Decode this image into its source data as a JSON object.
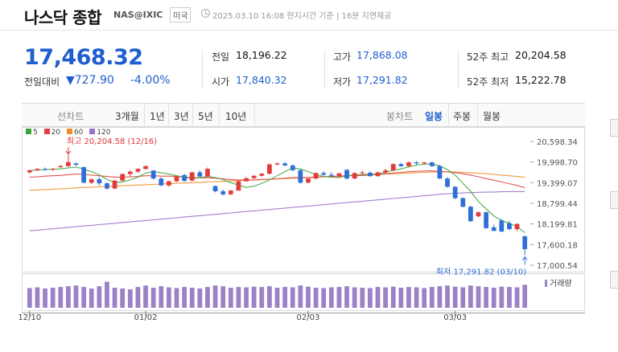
{
  "header": {
    "title": "나스닥 종합",
    "code": "NAS@IXIC",
    "market": "미국",
    "timestamp": "2025.03.10 16:08 현지시간 기준 | 16분 지연제공"
  },
  "quote": {
    "price": "17,468.32",
    "change_label": "전일대비",
    "change_value": "▼727.90",
    "change_pct": "-4.00%"
  },
  "stats": [
    {
      "label": "전일",
      "value": "18,196.22",
      "color": "black"
    },
    {
      "label": "시가",
      "value": "17,840.32",
      "color": "blue"
    },
    {
      "label": "고가",
      "value": "17,868.08",
      "color": "blue"
    },
    {
      "label": "저가",
      "value": "17,291.82",
      "color": "blue"
    },
    {
      "label": "52주 최고",
      "value": "20,204.58",
      "color": "black"
    },
    {
      "label": "52주 최저",
      "value": "15,222.78",
      "color": "black"
    }
  ],
  "tabs": {
    "line": [
      "선차트",
      "3개월",
      "1년",
      "3년",
      "5년",
      "10년"
    ],
    "candle": [
      "봉차트",
      "일봉",
      "주봉",
      "월봉"
    ],
    "active_candle": "일봉"
  },
  "legend": [
    {
      "label": "5",
      "color": "#3aa33a"
    },
    {
      "label": "20",
      "color": "#e04040"
    },
    {
      "label": "60",
      "color": "#f08c28"
    },
    {
      "label": "120",
      "color": "#9a6fc7"
    }
  ],
  "colors": {
    "up": "#e23b3b",
    "down": "#2f6fd8",
    "volume": "#9b82c6",
    "accent": "#1e5ecf"
  },
  "chart_data": {
    "type": "candlestick",
    "y_ticks": [
      "20,598.34",
      "19,998.70",
      "19,399.07",
      "18,799.44",
      "18,199.81",
      "17,600.18",
      "17,000.54"
    ],
    "ylim": [
      17000.54,
      20598.34
    ],
    "x_ticks": [
      {
        "label": "12/10",
        "index": 0
      },
      {
        "label": "01/02",
        "index": 15
      },
      {
        "label": "02/03",
        "index": 36
      },
      {
        "label": "03/03",
        "index": 55
      }
    ],
    "high_annotation": "최고 20,204.58 (12/16)",
    "low_annotation": "최저 17,291.82 (03/10)",
    "volume_label": "거래량",
    "candles": [
      {
        "o": 19700,
        "h": 19780,
        "l": 19660,
        "c": 19760
      },
      {
        "o": 19760,
        "h": 19830,
        "l": 19740,
        "c": 19800
      },
      {
        "o": 19800,
        "h": 19840,
        "l": 19750,
        "c": 19770
      },
      {
        "o": 19780,
        "h": 19830,
        "l": 19740,
        "c": 19800
      },
      {
        "o": 19850,
        "h": 19920,
        "l": 19830,
        "c": 19880
      },
      {
        "o": 19880,
        "h": 20205,
        "l": 19860,
        "c": 20000
      },
      {
        "o": 19960,
        "h": 19980,
        "l": 19880,
        "c": 19920
      },
      {
        "o": 19850,
        "h": 19870,
        "l": 19380,
        "c": 19400
      },
      {
        "o": 19400,
        "h": 19520,
        "l": 19360,
        "c": 19500
      },
      {
        "o": 19500,
        "h": 19560,
        "l": 19320,
        "c": 19380
      },
      {
        "o": 19380,
        "h": 19420,
        "l": 19200,
        "c": 19230
      },
      {
        "o": 19230,
        "h": 19480,
        "l": 19210,
        "c": 19460
      },
      {
        "o": 19460,
        "h": 19670,
        "l": 19440,
        "c": 19650
      },
      {
        "o": 19650,
        "h": 19760,
        "l": 19560,
        "c": 19720
      },
      {
        "o": 19720,
        "h": 19820,
        "l": 19680,
        "c": 19800
      },
      {
        "o": 19800,
        "h": 19900,
        "l": 19780,
        "c": 19880
      },
      {
        "o": 19750,
        "h": 19770,
        "l": 19490,
        "c": 19520
      },
      {
        "o": 19520,
        "h": 19560,
        "l": 19300,
        "c": 19320
      },
      {
        "o": 19320,
        "h": 19460,
        "l": 19280,
        "c": 19440
      },
      {
        "o": 19440,
        "h": 19600,
        "l": 19420,
        "c": 19580
      },
      {
        "o": 19620,
        "h": 19660,
        "l": 19430,
        "c": 19450
      },
      {
        "o": 19460,
        "h": 19720,
        "l": 19440,
        "c": 19700
      },
      {
        "o": 19700,
        "h": 19760,
        "l": 19560,
        "c": 19580
      },
      {
        "o": 19580,
        "h": 19840,
        "l": 19560,
        "c": 19800
      },
      {
        "o": 19300,
        "h": 19320,
        "l": 19120,
        "c": 19150
      },
      {
        "o": 19150,
        "h": 19200,
        "l": 19030,
        "c": 19060
      },
      {
        "o": 19060,
        "h": 19190,
        "l": 19040,
        "c": 19170
      },
      {
        "o": 19170,
        "h": 19460,
        "l": 19160,
        "c": 19440
      },
      {
        "o": 19440,
        "h": 19560,
        "l": 19430,
        "c": 19530
      },
      {
        "o": 19530,
        "h": 19620,
        "l": 19510,
        "c": 19600
      },
      {
        "o": 19600,
        "h": 19680,
        "l": 19580,
        "c": 19660
      },
      {
        "o": 19660,
        "h": 19960,
        "l": 19640,
        "c": 19930
      },
      {
        "o": 19930,
        "h": 19990,
        "l": 19900,
        "c": 19960
      },
      {
        "o": 19960,
        "h": 20000,
        "l": 19880,
        "c": 19900
      },
      {
        "o": 19900,
        "h": 19930,
        "l": 19740,
        "c": 19760
      },
      {
        "o": 19760,
        "h": 19800,
        "l": 19370,
        "c": 19400
      },
      {
        "o": 19400,
        "h": 19530,
        "l": 19380,
        "c": 19520
      },
      {
        "o": 19520,
        "h": 19700,
        "l": 19500,
        "c": 19680
      },
      {
        "o": 19680,
        "h": 19730,
        "l": 19600,
        "c": 19630
      },
      {
        "o": 19630,
        "h": 19700,
        "l": 19560,
        "c": 19600
      },
      {
        "o": 19600,
        "h": 19690,
        "l": 19540,
        "c": 19670
      },
      {
        "o": 19770,
        "h": 19800,
        "l": 19490,
        "c": 19520
      },
      {
        "o": 19520,
        "h": 19700,
        "l": 19500,
        "c": 19680
      },
      {
        "o": 19680,
        "h": 19750,
        "l": 19640,
        "c": 19700
      },
      {
        "o": 19690,
        "h": 19730,
        "l": 19570,
        "c": 19590
      },
      {
        "o": 19590,
        "h": 19720,
        "l": 19570,
        "c": 19700
      },
      {
        "o": 19700,
        "h": 19800,
        "l": 19660,
        "c": 19760
      },
      {
        "o": 19760,
        "h": 19960,
        "l": 19740,
        "c": 19940
      },
      {
        "o": 19940,
        "h": 19980,
        "l": 19860,
        "c": 19880
      },
      {
        "o": 19880,
        "h": 20020,
        "l": 19860,
        "c": 19990
      },
      {
        "o": 19990,
        "h": 20030,
        "l": 19920,
        "c": 19960
      },
      {
        "o": 19960,
        "h": 20000,
        "l": 19920,
        "c": 19990
      },
      {
        "o": 19990,
        "h": 20010,
        "l": 19860,
        "c": 19880
      },
      {
        "o": 19880,
        "h": 19920,
        "l": 19500,
        "c": 19520
      },
      {
        "o": 19520,
        "h": 19560,
        "l": 19260,
        "c": 19280
      },
      {
        "o": 19280,
        "h": 19300,
        "l": 18920,
        "c": 18950
      },
      {
        "o": 18950,
        "h": 18970,
        "l": 18680,
        "c": 18700
      },
      {
        "o": 18700,
        "h": 18730,
        "l": 18260,
        "c": 18280
      },
      {
        "o": 18420,
        "h": 18560,
        "l": 18400,
        "c": 18540
      },
      {
        "o": 18540,
        "h": 18560,
        "l": 18060,
        "c": 18080
      },
      {
        "o": 18100,
        "h": 18180,
        "l": 17990,
        "c": 18000
      },
      {
        "o": 18300,
        "h": 18350,
        "l": 17960,
        "c": 17980
      },
      {
        "o": 18220,
        "h": 18290,
        "l": 18020,
        "c": 18050
      },
      {
        "o": 18050,
        "h": 18220,
        "l": 17990,
        "c": 18200
      },
      {
        "o": 17840,
        "h": 17868.08,
        "l": 17291.82,
        "c": 17468.32
      }
    ],
    "ma_5": [
      19750,
      19770,
      19780,
      19790,
      19800,
      19830,
      19850,
      19800,
      19720,
      19630,
      19490,
      19410,
      19420,
      19480,
      19560,
      19680,
      19720,
      19690,
      19650,
      19600,
      19560,
      19520,
      19550,
      19580,
      19550,
      19490,
      19400,
      19330,
      19260,
      19300,
      19380,
      19480,
      19600,
      19720,
      19830,
      19800,
      19720,
      19640,
      19580,
      19560,
      19550,
      19600,
      19620,
      19640,
      19640,
      19650,
      19700,
      19760,
      19800,
      19860,
      19910,
      19940,
      19940,
      19890,
      19780,
      19620,
      19380,
      19150,
      18850,
      18640,
      18430,
      18300,
      18220,
      18120,
      17950
    ],
    "ma_20": [
      19560,
      19570,
      19590,
      19600,
      19610,
      19630,
      19650,
      19640,
      19620,
      19600,
      19580,
      19560,
      19560,
      19570,
      19580,
      19600,
      19600,
      19590,
      19590,
      19580,
      19560,
      19550,
      19540,
      19540,
      19530,
      19510,
      19490,
      19480,
      19480,
      19480,
      19490,
      19500,
      19510,
      19530,
      19550,
      19550,
      19550,
      19560,
      19570,
      19580,
      19590,
      19600,
      19600,
      19610,
      19620,
      19640,
      19660,
      19680,
      19700,
      19720,
      19730,
      19740,
      19740,
      19730,
      19710,
      19690,
      19660,
      19620,
      19570,
      19520,
      19470,
      19420,
      19370,
      19320,
      19250
    ],
    "ma_60": [
      19180,
      19190,
      19200,
      19210,
      19220,
      19230,
      19250,
      19260,
      19270,
      19280,
      19290,
      19300,
      19310,
      19320,
      19330,
      19340,
      19350,
      19360,
      19370,
      19380,
      19390,
      19400,
      19410,
      19420,
      19430,
      19440,
      19450,
      19460,
      19470,
      19480,
      19490,
      19500,
      19510,
      19520,
      19530,
      19540,
      19550,
      19560,
      19570,
      19580,
      19590,
      19600,
      19610,
      19620,
      19630,
      19640,
      19650,
      19660,
      19670,
      19680,
      19690,
      19700,
      19710,
      19715,
      19715,
      19710,
      19700,
      19690,
      19675,
      19660,
      19640,
      19620,
      19600,
      19580,
      19560
    ],
    "ma_120": [
      18000,
      18020,
      18040,
      18060,
      18080,
      18100,
      18120,
      18140,
      18160,
      18180,
      18200,
      18220,
      18240,
      18260,
      18280,
      18300,
      18320,
      18340,
      18360,
      18380,
      18400,
      18420,
      18440,
      18460,
      18480,
      18500,
      18520,
      18540,
      18560,
      18580,
      18600,
      18620,
      18640,
      18660,
      18680,
      18700,
      18720,
      18740,
      18760,
      18780,
      18800,
      18820,
      18840,
      18860,
      18880,
      18900,
      18920,
      18940,
      18960,
      18980,
      19000,
      19020,
      19040,
      19060,
      19080,
      19090,
      19100,
      19110,
      19120,
      19125,
      19130,
      19135,
      19138,
      19140,
      19142
    ],
    "volume": [
      53,
      55,
      52,
      54,
      56,
      58,
      60,
      56,
      52,
      58,
      70,
      54,
      52,
      50,
      56,
      60,
      54,
      58,
      55,
      53,
      56,
      54,
      52,
      56,
      60,
      58,
      54,
      56,
      55,
      57,
      56,
      58,
      54,
      56,
      55,
      60,
      57,
      54,
      53,
      55,
      56,
      58,
      55,
      54,
      53,
      56,
      55,
      57,
      54,
      56,
      55,
      53,
      56,
      58,
      60,
      57,
      55,
      60,
      58,
      56,
      54,
      57,
      56,
      55,
      62
    ]
  }
}
